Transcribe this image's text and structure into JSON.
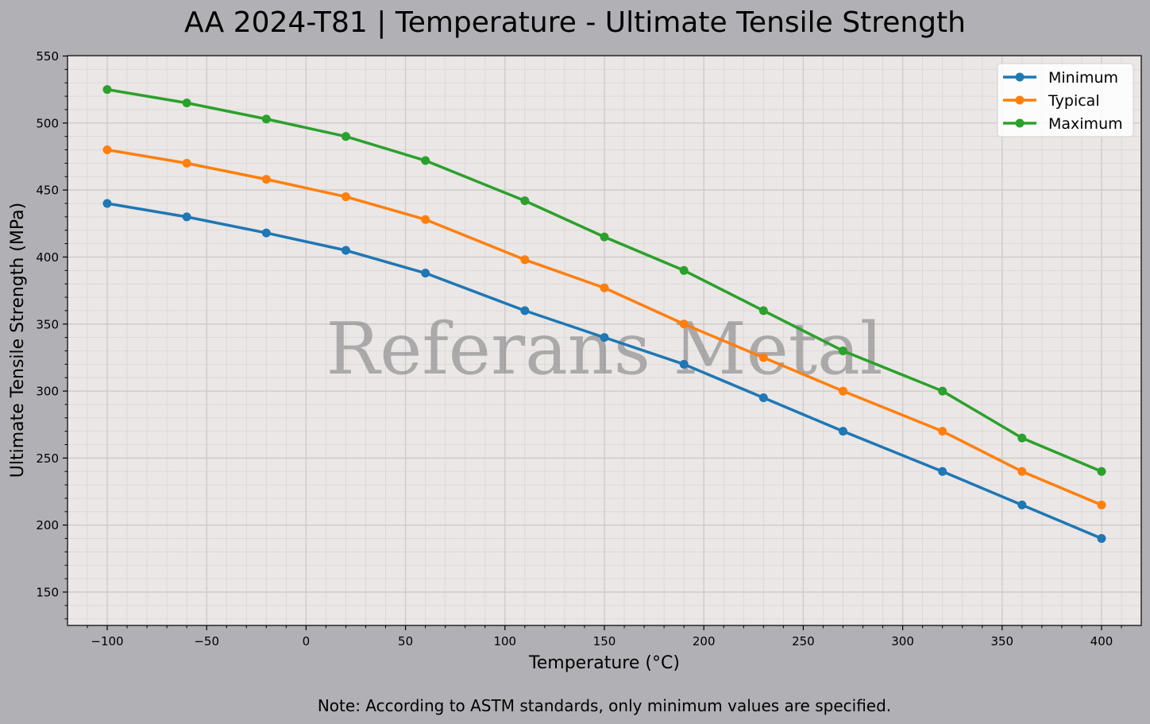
{
  "header": {
    "title": "AA 2024-T81 | Temperature - Ultimate Tensile Strength"
  },
  "footer": {
    "note": "Note: According to ASTM standards, only minimum values are specified."
  },
  "watermark": "Referans Metal",
  "colors": {
    "background": "#b1b0b5",
    "plot_bg": "#eae7e6",
    "minimum": "#1f77b4",
    "typical": "#ff7f0e",
    "maximum": "#2ca02c"
  },
  "chart_data": {
    "type": "line",
    "title": "AA 2024-T81 | Temperature - Ultimate Tensile Strength",
    "xlabel": "Temperature (°C)",
    "ylabel": "Ultimate Tensile Strength (MPa)",
    "x": [
      -100,
      -60,
      -20,
      20,
      60,
      110,
      150,
      190,
      230,
      270,
      320,
      360,
      400
    ],
    "series": [
      {
        "name": "Minimum",
        "color": "#1f77b4",
        "values": [
          440,
          430,
          418,
          405,
          388,
          360,
          340,
          320,
          295,
          270,
          240,
          215,
          190
        ]
      },
      {
        "name": "Typical",
        "color": "#ff7f0e",
        "values": [
          480,
          470,
          458,
          445,
          428,
          398,
          377,
          350,
          325,
          300,
          270,
          240,
          215
        ]
      },
      {
        "name": "Maximum",
        "color": "#2ca02c",
        "values": [
          525,
          515,
          503,
          490,
          472,
          442,
          415,
          390,
          360,
          330,
          300,
          265,
          240
        ]
      }
    ],
    "xticks": [
      -100,
      -50,
      0,
      50,
      100,
      150,
      200,
      250,
      300,
      350,
      400
    ],
    "xtick_labels": [
      "−100",
      "−50",
      "0",
      "50",
      "100",
      "150",
      "200",
      "250",
      "300",
      "350",
      "400"
    ],
    "yticks": [
      150,
      200,
      250,
      300,
      350,
      400,
      450,
      500,
      550
    ],
    "xlim": [
      -120,
      420
    ],
    "ylim": [
      125,
      550
    ],
    "grid": true,
    "minor_grid": true,
    "legend_position": "upper right",
    "annotations": [
      "Referans Metal"
    ]
  }
}
